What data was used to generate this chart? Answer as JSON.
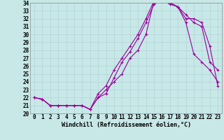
{
  "xlabel": "Windchill (Refroidissement éolien,°C)",
  "xlim": [
    -0.5,
    23.5
  ],
  "ylim": [
    20,
    34
  ],
  "xticks": [
    0,
    1,
    2,
    3,
    4,
    5,
    6,
    7,
    8,
    9,
    10,
    11,
    12,
    13,
    14,
    15,
    16,
    17,
    18,
    19,
    20,
    21,
    22,
    23
  ],
  "yticks": [
    20,
    21,
    22,
    23,
    24,
    25,
    26,
    27,
    28,
    29,
    30,
    31,
    32,
    33,
    34
  ],
  "bg_color": "#c8e8e8",
  "line_color": "#990099",
  "line1_x": [
    0,
    1,
    2,
    3,
    4,
    5,
    6,
    7,
    8,
    9,
    10,
    11,
    12,
    13,
    14,
    15,
    16,
    17,
    18,
    19,
    20,
    21,
    22,
    23
  ],
  "line1_y": [
    22.0,
    21.8,
    21.0,
    21.0,
    21.0,
    21.0,
    21.0,
    20.5,
    22.0,
    23.0,
    24.0,
    25.0,
    27.0,
    28.0,
    30.0,
    34.2,
    34.5,
    34.0,
    33.5,
    31.5,
    27.5,
    26.5,
    25.5,
    24.0
  ],
  "line2_x": [
    0,
    1,
    2,
    3,
    4,
    5,
    6,
    7,
    8,
    9,
    10,
    11,
    12,
    13,
    14,
    15,
    16,
    17,
    18,
    19,
    20,
    21,
    22,
    23
  ],
  "line2_y": [
    22.0,
    21.8,
    21.0,
    21.0,
    21.0,
    21.0,
    21.0,
    20.5,
    22.0,
    22.5,
    24.5,
    26.5,
    27.8,
    29.5,
    31.5,
    33.8,
    34.5,
    33.8,
    33.5,
    32.0,
    32.0,
    31.5,
    28.5,
    23.5
  ],
  "line3_x": [
    0,
    1,
    2,
    3,
    4,
    5,
    6,
    7,
    8,
    9,
    10,
    11,
    12,
    13,
    14,
    15,
    16,
    17,
    18,
    19,
    20,
    21,
    22,
    23
  ],
  "line3_y": [
    22.0,
    21.8,
    21.0,
    21.0,
    21.0,
    21.0,
    21.0,
    20.5,
    22.5,
    23.5,
    25.5,
    27.0,
    28.5,
    30.0,
    32.0,
    34.2,
    34.2,
    34.0,
    33.5,
    32.5,
    31.5,
    31.0,
    26.5,
    25.5
  ],
  "marker": "+",
  "markersize": 3.5,
  "linewidth": 0.8,
  "tick_fontsize": 5.5,
  "xlabel_fontsize": 6.0,
  "grid_color": "#b0d4d4"
}
